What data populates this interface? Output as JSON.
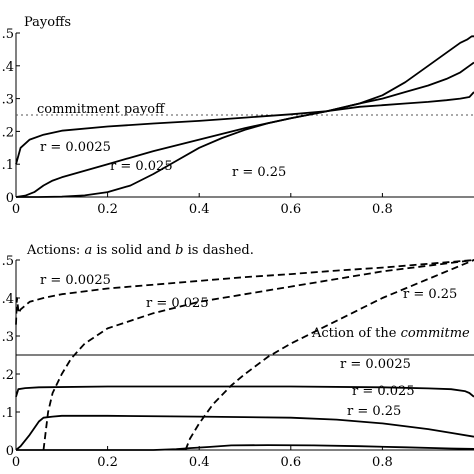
{
  "chart_data": [
    {
      "type": "line",
      "title": "Payoffs",
      "xlabel": "",
      "ylabel": "",
      "xlim": [
        0,
        1
      ],
      "ylim": [
        0,
        0.5
      ],
      "xticks": [
        "0",
        "0.2",
        "0.4",
        "0.6",
        "0.8"
      ],
      "yticks": [
        ".5",
        ".4",
        ".3",
        ".2",
        ".1",
        "0"
      ],
      "reference_line": {
        "label": "commitment payoff",
        "y": 0.25,
        "style": "dotted"
      },
      "series": [
        {
          "name": "r = 0.0025",
          "style": "solid",
          "x": [
            0,
            0.01,
            0.03,
            0.06,
            0.1,
            0.2,
            0.3,
            0.4,
            0.5,
            0.6,
            0.68,
            0.75,
            0.8,
            0.85,
            0.9,
            0.94,
            0.97,
            0.985,
            0.995,
            1.0
          ],
          "y": [
            0.1,
            0.15,
            0.175,
            0.19,
            0.202,
            0.215,
            0.224,
            0.232,
            0.242,
            0.252,
            0.262,
            0.285,
            0.31,
            0.35,
            0.4,
            0.44,
            0.47,
            0.48,
            0.49,
            0.49
          ]
        },
        {
          "name": "r = 0.025",
          "style": "solid",
          "x": [
            0,
            0.02,
            0.04,
            0.06,
            0.08,
            0.1,
            0.2,
            0.3,
            0.4,
            0.5,
            0.6,
            0.68,
            0.75,
            0.8,
            0.85,
            0.9,
            0.94,
            0.97,
            0.99,
            1.0
          ],
          "y": [
            0.0,
            0.004,
            0.015,
            0.035,
            0.05,
            0.06,
            0.1,
            0.14,
            0.175,
            0.21,
            0.24,
            0.262,
            0.285,
            0.3,
            0.32,
            0.34,
            0.36,
            0.38,
            0.4,
            0.41
          ]
        },
        {
          "name": "r = 0.25",
          "style": "solid",
          "x": [
            0,
            0.05,
            0.1,
            0.15,
            0.2,
            0.25,
            0.3,
            0.35,
            0.4,
            0.45,
            0.5,
            0.55,
            0.6,
            0.68,
            0.75,
            0.8,
            0.85,
            0.9,
            0.94,
            0.97,
            0.99,
            1.0
          ],
          "y": [
            0.0,
            0.0,
            0.001,
            0.005,
            0.015,
            0.035,
            0.07,
            0.11,
            0.15,
            0.18,
            0.205,
            0.225,
            0.24,
            0.262,
            0.275,
            0.28,
            0.285,
            0.29,
            0.295,
            0.3,
            0.305,
            0.32
          ]
        }
      ],
      "annotations": [
        "r = 0.0025",
        "r = 0.025",
        "r = 0.25",
        "commitment payoff"
      ]
    },
    {
      "type": "line",
      "title": "Actions: a is solid and b is dashed.",
      "xlabel": "",
      "ylabel": "",
      "xlim": [
        0,
        1
      ],
      "ylim": [
        0,
        0.5
      ],
      "xticks": [
        "0",
        "0.2",
        "0.4",
        "0.6",
        "0.8"
      ],
      "yticks": [
        ".5",
        ".4",
        ".3",
        ".2",
        ".1",
        "0"
      ],
      "reference_line": {
        "label": "Action of the commitme",
        "y": 0.25,
        "style": "solid"
      },
      "series": [
        {
          "name": "a, r = 0.0025",
          "style": "solid",
          "x": [
            0,
            0.005,
            0.02,
            0.05,
            0.2,
            0.4,
            0.6,
            0.8,
            0.9,
            0.95,
            0.98,
            0.99,
            1.0
          ],
          "y": [
            0.14,
            0.16,
            0.163,
            0.165,
            0.167,
            0.167,
            0.167,
            0.165,
            0.162,
            0.16,
            0.155,
            0.15,
            0.14
          ]
        },
        {
          "name": "a, r = 0.025",
          "style": "solid",
          "x": [
            0,
            0.01,
            0.03,
            0.05,
            0.06,
            0.08,
            0.1,
            0.2,
            0.4,
            0.6,
            0.7,
            0.8,
            0.9,
            0.95,
            1.0
          ],
          "y": [
            0.0,
            0.01,
            0.04,
            0.075,
            0.085,
            0.088,
            0.09,
            0.09,
            0.088,
            0.085,
            0.08,
            0.07,
            0.055,
            0.045,
            0.035
          ]
        },
        {
          "name": "a, r = 0.25",
          "style": "solid",
          "x": [
            0,
            0.1,
            0.2,
            0.3,
            0.35,
            0.38,
            0.42,
            0.47,
            0.55,
            0.65,
            0.75,
            0.85,
            0.95,
            1.0
          ],
          "y": [
            0.0,
            0.0,
            0.0,
            0.0,
            0.002,
            0.005,
            0.008,
            0.012,
            0.013,
            0.012,
            0.01,
            0.007,
            0.004,
            0.003
          ]
        },
        {
          "name": "b, r = 0.0025",
          "style": "dashed",
          "x": [
            0,
            0.002,
            0.006,
            0.01,
            0.03,
            0.06,
            0.1,
            0.2,
            0.3,
            0.4,
            0.5,
            0.6,
            0.7,
            0.8,
            0.9,
            1.0
          ],
          "y": [
            0.33,
            0.4,
            0.36,
            0.37,
            0.39,
            0.4,
            0.41,
            0.425,
            0.435,
            0.445,
            0.455,
            0.463,
            0.472,
            0.48,
            0.49,
            0.5
          ]
        },
        {
          "name": "b, r = 0.025",
          "style": "dashed",
          "x": [
            0.06,
            0.07,
            0.08,
            0.1,
            0.12,
            0.15,
            0.2,
            0.3,
            0.4,
            0.5,
            0.6,
            0.7,
            0.8,
            0.9,
            1.0
          ],
          "y": [
            0.0,
            0.1,
            0.15,
            0.2,
            0.24,
            0.28,
            0.32,
            0.36,
            0.39,
            0.41,
            0.43,
            0.45,
            0.47,
            0.485,
            0.5
          ]
        },
        {
          "name": "b, r = 0.25",
          "style": "dashed",
          "x": [
            0.37,
            0.38,
            0.4,
            0.43,
            0.47,
            0.5,
            0.55,
            0.6,
            0.65,
            0.7,
            0.75,
            0.8,
            0.85,
            0.9,
            0.95,
            1.0
          ],
          "y": [
            0.0,
            0.03,
            0.07,
            0.12,
            0.17,
            0.2,
            0.245,
            0.28,
            0.31,
            0.34,
            0.37,
            0.4,
            0.425,
            0.45,
            0.475,
            0.5
          ]
        }
      ],
      "annotations": [
        "r = 0.0025",
        "r = 0.025",
        "r = 0.25",
        "r = 0.0025",
        "r = 0.025",
        "r = 0.25",
        "Action of the commitme"
      ]
    }
  ],
  "text": {
    "top_title": "Payoffs",
    "top_ref_label": "commitment payoff",
    "top_r1": "r = 0.0025",
    "top_r2": "r = 0.025",
    "top_r3": "r = 0.25",
    "bot_title_pre": "Actions: ",
    "bot_title_a": "a",
    "bot_title_mid": " is solid and ",
    "bot_title_b": "b",
    "bot_title_post": " is dashed.",
    "bot_ref_label_pre": "Action of the ",
    "bot_ref_label_em": "commitme",
    "bot_dash_r1": "r = 0.0025",
    "bot_dash_r2": "r = 0.025",
    "bot_dash_r3": "r = 0.25",
    "bot_solid_r1": "r = 0.0025",
    "bot_solid_r2": "r = 0.025",
    "bot_solid_r3": "r = 0.25"
  }
}
